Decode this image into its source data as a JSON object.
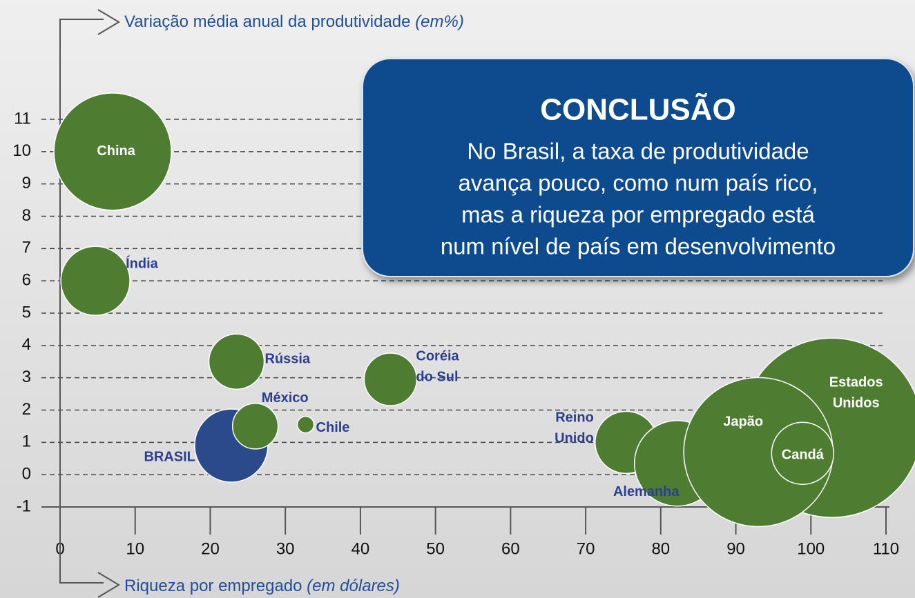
{
  "chart_data": {
    "type": "bubble",
    "y_label": "Variação média anual da produtividade",
    "y_label_unit": "(em%)",
    "x_label": "Riqueza por empregado",
    "x_label_unit": "(em dólares)",
    "xlim": [
      0,
      110
    ],
    "xticks": [
      0,
      10,
      20,
      30,
      40,
      50,
      60,
      70,
      80,
      90,
      100,
      110
    ],
    "ylim": [
      -1,
      11
    ],
    "yticks": [
      -1,
      0,
      1,
      2,
      3,
      4,
      5,
      6,
      7,
      8,
      9,
      10,
      11
    ],
    "grid": true,
    "points": [
      {
        "label": [
          "China"
        ],
        "x": 7,
        "y": 10,
        "size": 85,
        "color": "#4e7d32"
      },
      {
        "label": [
          "Índia"
        ],
        "x": 4.7,
        "y": 6,
        "size": 50,
        "color": "#4e7d32"
      },
      {
        "label": [
          "Rússia"
        ],
        "x": 23.5,
        "y": 3.5,
        "size": 40,
        "color": "#4e7d32"
      },
      {
        "label": [
          "Coréia",
          "do Sul"
        ],
        "x": 44,
        "y": 2.95,
        "size": 38,
        "color": "#4e7d32"
      },
      {
        "label": [
          "BRASIL"
        ],
        "x": 22.8,
        "y": 0.9,
        "size": 53,
        "color": "#2b4a8c"
      },
      {
        "label": [
          "México"
        ],
        "x": 26,
        "y": 1.5,
        "size": 33,
        "color": "#4e7d32"
      },
      {
        "label": [
          "Chile"
        ],
        "x": 32.7,
        "y": 1.55,
        "size": 12,
        "color": "#4e7d32"
      },
      {
        "label": [
          "Reino",
          "Unido"
        ],
        "x": 75.4,
        "y": 1,
        "size": 45,
        "color": "#4e7d32"
      },
      {
        "label": [
          "Alemanha"
        ],
        "x": 82.2,
        "y": 0.35,
        "size": 62,
        "color": "#4e7d32"
      },
      {
        "label": [
          "Estados",
          "Unidos"
        ],
        "x": 102.8,
        "y": 1.45,
        "size": 130,
        "color": "#4e7d32"
      },
      {
        "label": [
          "Japão"
        ],
        "x": 93,
        "y": 0.7,
        "size": 108,
        "color": "#4e7d32"
      },
      {
        "label": [
          "Candá"
        ],
        "x": 98.9,
        "y": 0.66,
        "size": 45,
        "color": "#4e7d32"
      }
    ],
    "annotation": {
      "title": "CONCLUSÃO",
      "lines": [
        "No Brasil, a taxa de produtividade",
        "avança pouco, como num país rico,",
        "mas a riqueza por empregado está",
        "num nível de país em desenvolvimento"
      ]
    }
  }
}
